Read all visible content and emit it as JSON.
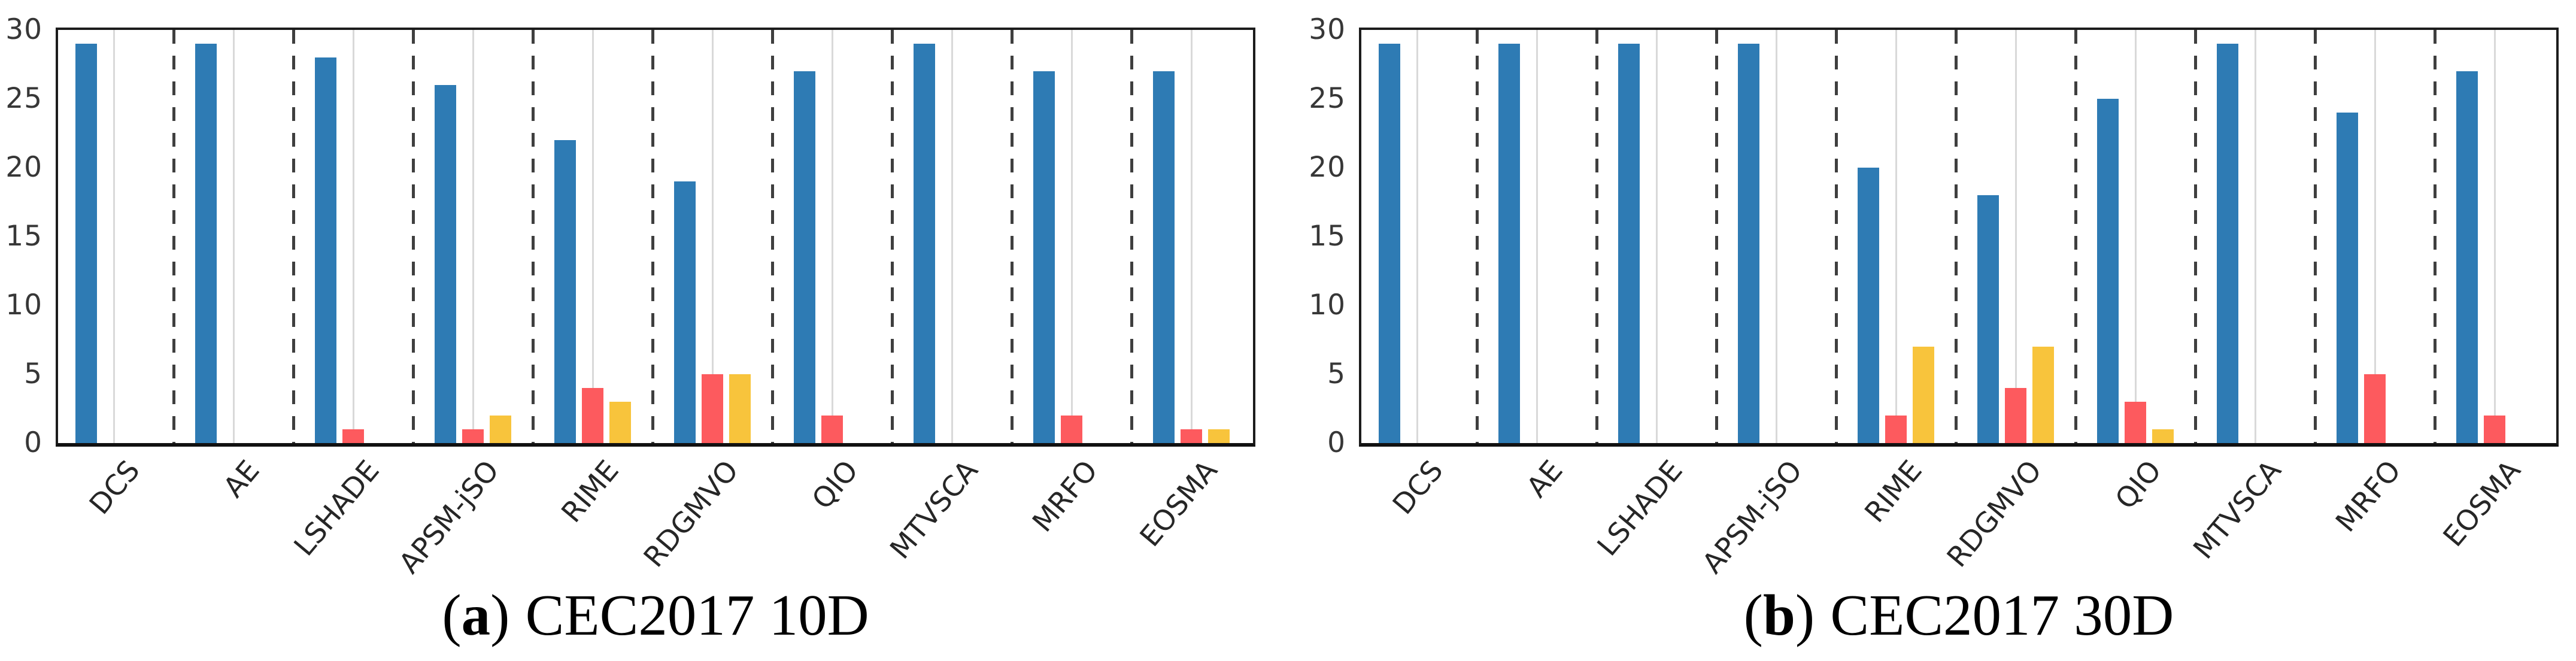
{
  "figure": {
    "description": "Two grouped bar charts comparing optimization algorithms",
    "background": "#ffffff"
  },
  "colors": {
    "blue": "#2e7bb4",
    "red": "#fd5a5e",
    "yellow": "#f8c43c",
    "gridline": "#d9d9d9",
    "separator": "#3f3f3f",
    "axis": "#1c1c1c",
    "tick_label": "#373737",
    "category_label": "#262626"
  },
  "chart_data": [
    {
      "type": "bar",
      "title": "(a) CEC2017 10D",
      "caption": {
        "open": "(",
        "letter": "a",
        "close": ")",
        "text": "CEC2017 10D"
      },
      "categories": [
        "DCS",
        "AE",
        "LSHADE",
        "APSM-jSO",
        "RIME",
        "RDGMVO",
        "QIO",
        "MTVSCA",
        "MRFO",
        "EOSMA"
      ],
      "series": [
        {
          "name": "blue",
          "color_key": "blue",
          "values": [
            29,
            29,
            28,
            26,
            22,
            19,
            27,
            29,
            27,
            27
          ]
        },
        {
          "name": "red",
          "color_key": "red",
          "values": [
            0,
            0,
            1,
            1,
            4,
            5,
            2,
            0,
            2,
            1
          ]
        },
        {
          "name": "yellow",
          "color_key": "yellow",
          "values": [
            0,
            0,
            0,
            2,
            3,
            5,
            0,
            0,
            0,
            1
          ]
        }
      ],
      "xlabel": "",
      "ylabel": "",
      "ylim": [
        0,
        30
      ],
      "yticks": [
        0,
        5,
        10,
        15,
        20,
        25,
        30
      ],
      "grid": "light vertical gridline at each category center; dashed vertical separators between categories",
      "legend": "none"
    },
    {
      "type": "bar",
      "title": "(b) CEC2017 30D",
      "caption": {
        "open": "(",
        "letter": "b",
        "close": ")",
        "text": "CEC2017 30D"
      },
      "categories": [
        "DCS",
        "AE",
        "LSHADE",
        "APSM-jSO",
        "RIME",
        "RDGMVO",
        "QIO",
        "MTVSCA",
        "MRFO",
        "EOSMA"
      ],
      "series": [
        {
          "name": "blue",
          "color_key": "blue",
          "values": [
            29,
            29,
            29,
            29,
            20,
            18,
            25,
            29,
            24,
            27
          ]
        },
        {
          "name": "red",
          "color_key": "red",
          "values": [
            0,
            0,
            0,
            0,
            2,
            4,
            3,
            0,
            5,
            2
          ]
        },
        {
          "name": "yellow",
          "color_key": "yellow",
          "values": [
            0,
            0,
            0,
            0,
            7,
            7,
            1,
            0,
            0,
            0
          ]
        }
      ],
      "xlabel": "",
      "ylabel": "",
      "ylim": [
        0,
        30
      ],
      "yticks": [
        0,
        5,
        10,
        15,
        20,
        25,
        30
      ],
      "grid": "light vertical gridline at each category center; dashed vertical separators between categories",
      "legend": "none"
    }
  ]
}
